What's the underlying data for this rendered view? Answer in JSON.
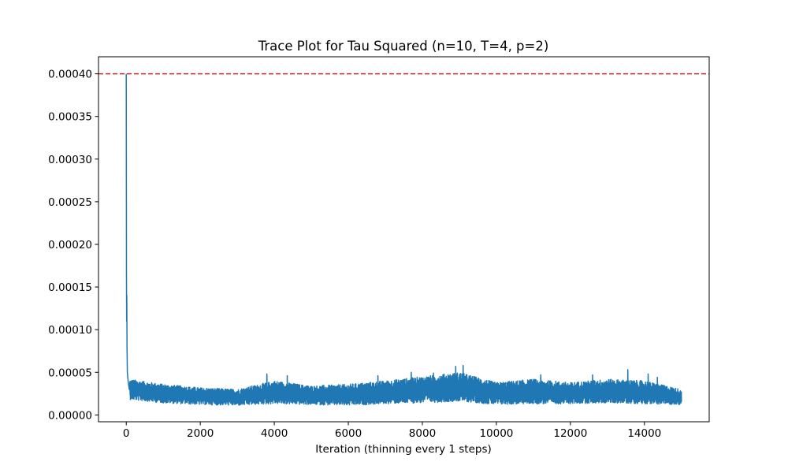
{
  "chart_data": {
    "type": "line",
    "title": "Trace Plot for Tau Squared (n=10, T=4, p=2)",
    "xlabel": "Iteration (thinning every 1 steps)",
    "ylabel": "",
    "xlim": [
      -750,
      15750
    ],
    "ylim": [
      -8e-06,
      0.00042
    ],
    "x_ticks": [
      0,
      2000,
      4000,
      6000,
      8000,
      10000,
      12000,
      14000
    ],
    "x_tick_labels": [
      "0",
      "2000",
      "4000",
      "6000",
      "8000",
      "10000",
      "12000",
      "14000"
    ],
    "y_ticks": [
      0,
      5e-05,
      0.0001,
      0.00015,
      0.0002,
      0.00025,
      0.0003,
      0.00035,
      0.0004
    ],
    "y_tick_labels": [
      "0.00000",
      "0.00005",
      "0.00010",
      "0.00015",
      "0.00020",
      "0.00025",
      "0.00030",
      "0.00035",
      "0.00040"
    ],
    "grid": false,
    "reference_line": {
      "y": 0.0004,
      "color": "#d62728",
      "style": "dashed"
    },
    "series": [
      {
        "color": "#1f77b4",
        "x_range": [
          0,
          15000
        ],
        "initial_trace": [
          {
            "x": 0,
            "y": 0.0004
          },
          {
            "x": 5,
            "y": 0.00016
          },
          {
            "x": 10,
            "y": 0.00011
          },
          {
            "x": 15,
            "y": 0.00014
          },
          {
            "x": 20,
            "y": 8e-05
          },
          {
            "x": 30,
            "y": 5e-05
          },
          {
            "x": 50,
            "y": 4e-05
          },
          {
            "x": 80,
            "y": 3e-05
          }
        ],
        "band_profile": [
          {
            "x": 100,
            "low": 1.8e-05,
            "high": 4.2e-05
          },
          {
            "x": 1000,
            "low": 1.4e-05,
            "high": 3.6e-05
          },
          {
            "x": 2000,
            "low": 1.2e-05,
            "high": 3.2e-05
          },
          {
            "x": 3000,
            "low": 1.1e-05,
            "high": 3e-05
          },
          {
            "x": 4000,
            "low": 1.3e-05,
            "high": 4e-05
          },
          {
            "x": 5000,
            "low": 1.2e-05,
            "high": 3.4e-05
          },
          {
            "x": 6000,
            "low": 1.1e-05,
            "high": 3.6e-05
          },
          {
            "x": 7000,
            "low": 1.3e-05,
            "high": 4e-05
          },
          {
            "x": 8000,
            "low": 1.4e-05,
            "high": 4.5e-05
          },
          {
            "x": 9000,
            "low": 1.6e-05,
            "high": 5e-05
          },
          {
            "x": 10000,
            "low": 1.2e-05,
            "high": 3.8e-05
          },
          {
            "x": 11000,
            "low": 1.3e-05,
            "high": 4.2e-05
          },
          {
            "x": 12000,
            "low": 1.3e-05,
            "high": 3.8e-05
          },
          {
            "x": 13000,
            "low": 1.4e-05,
            "high": 4.2e-05
          },
          {
            "x": 14000,
            "low": 1.3e-05,
            "high": 4e-05
          },
          {
            "x": 15000,
            "low": 1.2e-05,
            "high": 3e-05
          }
        ],
        "spikes": [
          {
            "x": 3800,
            "y": 4.8e-05
          },
          {
            "x": 4350,
            "y": 4.6e-05
          },
          {
            "x": 6800,
            "y": 4.6e-05
          },
          {
            "x": 7700,
            "y": 5e-05
          },
          {
            "x": 8300,
            "y": 4.9e-05
          },
          {
            "x": 8900,
            "y": 5.7e-05
          },
          {
            "x": 9100,
            "y": 5.8e-05
          },
          {
            "x": 11200,
            "y": 4.7e-05
          },
          {
            "x": 12600,
            "y": 4.7e-05
          },
          {
            "x": 13550,
            "y": 5.3e-05
          },
          {
            "x": 14100,
            "y": 4.8e-05
          },
          {
            "x": 14350,
            "y": 4.4e-05
          }
        ]
      }
    ]
  }
}
